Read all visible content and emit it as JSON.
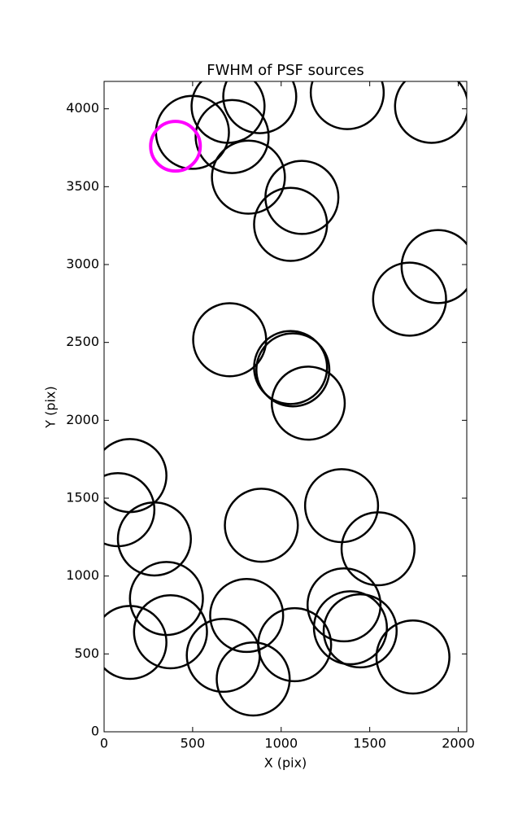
{
  "chart_data": {
    "type": "scatter",
    "title": "FWHM of PSF sources",
    "x_label": "X (pix)",
    "y_label": "Y (pix)",
    "xlim": [
      0,
      2048
    ],
    "ylim": [
      0,
      4176
    ],
    "xticks": [
      0,
      500,
      1000,
      1500,
      2000
    ],
    "yticks": [
      0,
      500,
      1000,
      1500,
      2000,
      2500,
      3000,
      3500,
      4000
    ],
    "grid": false,
    "series": [
      {
        "color": "#000000",
        "marker": "open-circle",
        "marker_radius": 206,
        "x": [
          499,
          700,
          879,
          723,
          815,
          1117,
          1053,
          1373,
          1849,
          1886,
          1725,
          709,
          1053,
          1066,
          1153,
          146,
          78,
          284,
          888,
          1341,
          1547,
          352,
          1355,
          1391,
          1446,
          1744,
          146,
          375,
          805,
          673,
          1076,
          842
        ],
        "values": [
          3849,
          4016,
          4078,
          3822,
          3561,
          3431,
          3258,
          4104,
          4016,
          2987,
          2778,
          2517,
          2339,
          2324,
          2110,
          1645,
          1426,
          1238,
          1326,
          1452,
          1175,
          856,
          815,
          668,
          648,
          480,
          574,
          642,
          747,
          491,
          559,
          339
        ]
      },
      {
        "color": "#ff00ff",
        "marker": "open-circle",
        "marker_radius": 140,
        "x": [
          403
        ],
        "values": [
          3760
        ]
      }
    ]
  }
}
